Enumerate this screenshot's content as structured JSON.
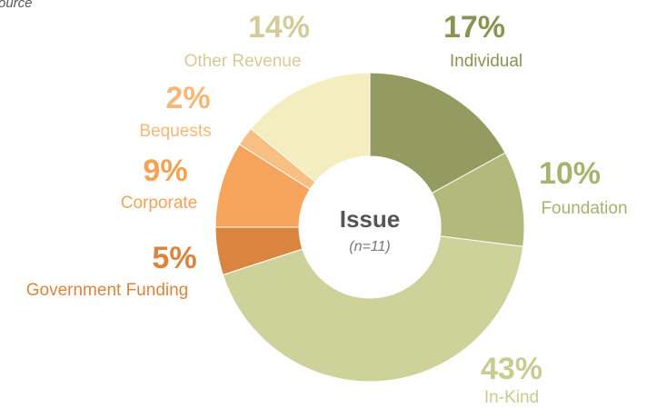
{
  "chart_data": {
    "type": "donut",
    "subtitle": "ource",
    "center_title": "Issue",
    "center_note": "(n=11)",
    "categories": [
      "Individual",
      "Foundation",
      "In-Kind",
      "Government Funding",
      "Corporate",
      "Bequests",
      "Other Revenue"
    ],
    "values": [
      17,
      10,
      43,
      5,
      9,
      2,
      14
    ],
    "value_labels": [
      "17%",
      "10%",
      "43%",
      "5%",
      "9%",
      "2%",
      "14%"
    ],
    "colors": [
      "#949b60",
      "#b1b97b",
      "#cdd29b",
      "#d98540",
      "#f6a45b",
      "#f8bf82",
      "#f4edc0"
    ],
    "label_colors": [
      "#8c9352",
      "#a9b16f",
      "#c7cc90",
      "#d98540",
      "#f3a256",
      "#f6b878",
      "#d3cb98"
    ]
  }
}
